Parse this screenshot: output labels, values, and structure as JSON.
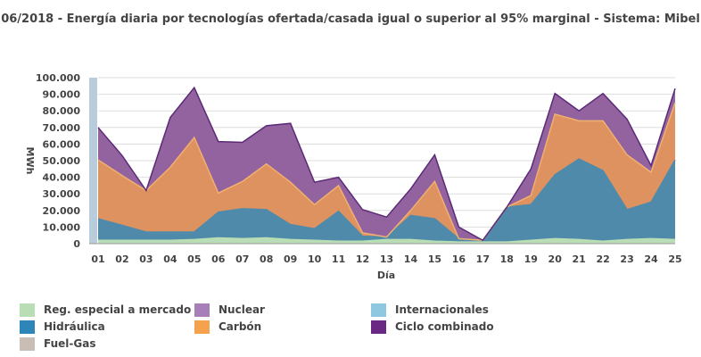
{
  "chart_data": {
    "type": "area",
    "title": "06/2018 - Energía diaria por tecnologías ofertada/casada igual o superior al 95% marginal - Sistema: Mibel",
    "xlabel": "Día",
    "ylabel": "MWh",
    "ylim": [
      0,
      100000
    ],
    "y_ticks": [
      "0",
      "10.000",
      "20.000",
      "30.000",
      "40.000",
      "50.000",
      "60.000",
      "70.000",
      "80.000",
      "90.000",
      "100.000"
    ],
    "categories": [
      "01",
      "02",
      "03",
      "04",
      "05",
      "06",
      "07",
      "08",
      "09",
      "10",
      "11",
      "12",
      "13",
      "14",
      "15",
      "16",
      "17",
      "18",
      "19",
      "20",
      "21",
      "22",
      "23",
      "24",
      "25"
    ],
    "stacked": true,
    "grid": true,
    "legend_position": "bottom",
    "series": [
      {
        "name": "Reg. especial a mercado",
        "color": "#b9ddb4",
        "values": [
          2000,
          2000,
          2000,
          2000,
          2500,
          3500,
          3000,
          3500,
          2500,
          2000,
          1500,
          1500,
          2500,
          2500,
          1500,
          1000,
          1000,
          1000,
          2000,
          3000,
          2500,
          1500,
          2500,
          3000,
          2500
        ]
      },
      {
        "name": "Hidráulica",
        "color": "#4f8aab",
        "values": [
          13000,
          9000,
          5000,
          5000,
          4500,
          15500,
          18000,
          17000,
          9000,
          7000,
          18000,
          3000,
          1500,
          14500,
          13500,
          2000,
          1000,
          21000,
          21500,
          38500,
          48500,
          42500,
          18000,
          22000,
          48000
        ]
      },
      {
        "name": "Fuel-Gas",
        "color": "#c8beb6",
        "values": [
          0,
          0,
          0,
          0,
          0,
          0,
          0,
          0,
          0,
          0,
          0,
          0,
          0,
          0,
          0,
          0,
          0,
          0,
          0,
          0,
          0,
          0,
          0,
          0,
          0
        ]
      },
      {
        "name": "Internacionales",
        "color": "#8ec7e0",
        "values": [
          0,
          0,
          0,
          0,
          0,
          0,
          0,
          0,
          0,
          0,
          0,
          0,
          0,
          0,
          0,
          0,
          0,
          0,
          0,
          0,
          0,
          0,
          0,
          0,
          0
        ]
      },
      {
        "name": "Carbón",
        "color": "#de9260",
        "values": [
          35500,
          30000,
          25000,
          39000,
          57000,
          11500,
          16500,
          27500,
          25500,
          14500,
          15500,
          2000,
          0,
          3000,
          22500,
          0,
          0,
          0,
          5500,
          36500,
          23000,
          30000,
          33000,
          18000,
          34500
        ]
      },
      {
        "name": "Nuclear",
        "color": "#9363a0",
        "values": [
          19500,
          12000,
          0,
          30000,
          30000,
          31000,
          23500,
          23000,
          35500,
          13500,
          5000,
          14000,
          12000,
          13000,
          16000,
          7000,
          0,
          0,
          16000,
          12500,
          6000,
          16500,
          21500,
          4000,
          8500
        ]
      },
      {
        "name": "Ciclo combinado",
        "color": "#5b2a77",
        "values": [
          0,
          0,
          0,
          0,
          0,
          0,
          0,
          0,
          0,
          0,
          0,
          0,
          0,
          0,
          0,
          0,
          0,
          0,
          0,
          0,
          0,
          0,
          0,
          0,
          0
        ]
      }
    ]
  },
  "legend": [
    {
      "label": "Reg. especial a mercado",
      "color": "#b9ddb4"
    },
    {
      "label": "Nuclear",
      "color": "#a880b8"
    },
    {
      "label": "Internacionales",
      "color": "#8ec7e0"
    },
    {
      "label": "Hidráulica",
      "color": "#2e86b8"
    },
    {
      "label": "Carbón",
      "color": "#f4a24d"
    },
    {
      "label": "Ciclo combinado",
      "color": "#6a2a84"
    },
    {
      "label": "Fuel-Gas",
      "color": "#c8beb6"
    }
  ]
}
